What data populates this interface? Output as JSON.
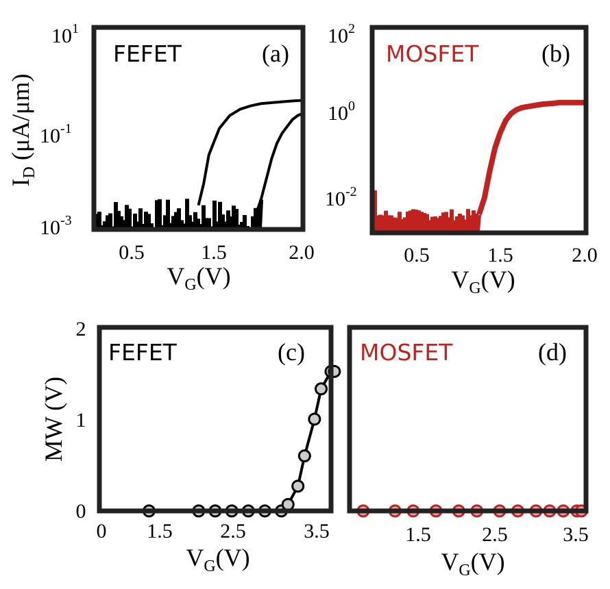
{
  "colors": {
    "fefet": "#000000",
    "mosfet": "#c0221f",
    "marker_fill": "#cccccc",
    "mosfet_marker_fill": "#e3a6a6"
  },
  "chart_data": [
    {
      "id": "a",
      "type": "line",
      "panel_label": "(a)",
      "inset_label": "FEFET",
      "xlabel": "V",
      "xlabel_sub": "G",
      "xlabel_tail": "(V)",
      "ylabel": "I",
      "ylabel_sub": "D",
      "ylabel_tail": " (μA/μm)",
      "x_tick_labels": [
        "0.5",
        "1.5",
        "2.0"
      ],
      "y_tick_labels": [
        {
          "base": "10",
          "exp": "-3"
        },
        {
          "base": "10",
          "exp": "-1"
        },
        {
          "base": "10",
          "exp": "1"
        }
      ],
      "yscale": "log",
      "xlim": [
        0,
        2.0
      ],
      "ylim": [
        0.001,
        10
      ],
      "noise_floor_range": [
        0.001,
        0.004
      ],
      "series": [
        {
          "x": [
            1.0,
            1.05,
            1.1,
            1.2,
            1.3,
            1.4,
            1.5,
            1.6,
            1.75,
            1.9,
            2.0
          ],
          "y": [
            0.003,
            0.008,
            0.03,
            0.1,
            0.18,
            0.24,
            0.28,
            0.31,
            0.33,
            0.35,
            0.36
          ]
        },
        {
          "x": [
            1.55,
            1.6,
            1.65,
            1.7,
            1.75,
            1.8,
            1.85,
            1.9,
            1.95,
            2.0
          ],
          "y": [
            0.002,
            0.004,
            0.01,
            0.025,
            0.05,
            0.08,
            0.11,
            0.15,
            0.18,
            0.2
          ]
        }
      ]
    },
    {
      "id": "b",
      "type": "line",
      "panel_label": "(b)",
      "inset_label": "MOSFET",
      "xlabel": "V",
      "xlabel_sub": "G",
      "xlabel_tail": "(V)",
      "x_tick_labels": [
        "0.5",
        "1.5",
        "2.0"
      ],
      "y_tick_labels": [
        {
          "base": "10",
          "exp": "-2"
        },
        {
          "base": "10",
          "exp": "0"
        },
        {
          "base": "10",
          "exp": "2"
        }
      ],
      "yscale": "log",
      "xlim": [
        0,
        2.0
      ],
      "ylim": [
        0.0005,
        100
      ],
      "noise_floor_range": [
        0.001,
        0.002
      ],
      "series": [
        {
          "x": [
            1.0,
            1.05,
            1.1,
            1.15,
            1.2,
            1.25,
            1.3,
            1.35,
            1.4,
            1.5,
            1.6,
            1.7,
            1.75,
            2.0
          ],
          "y": [
            0.0015,
            0.004,
            0.02,
            0.08,
            0.2,
            0.4,
            0.6,
            0.75,
            0.85,
            0.95,
            1.05,
            1.1,
            1.15,
            1.15
          ]
        }
      ]
    },
    {
      "id": "c",
      "type": "line",
      "panel_label": "(c)",
      "inset_label": "FEFET",
      "xlabel": "V",
      "xlabel_sub": "G",
      "xlabel_tail": "(V)",
      "ylabel": "MW (V)",
      "x_tick_labels": [
        "0",
        "1.5",
        "2.5",
        "3.5"
      ],
      "y_tick_labels": [
        "0",
        "1",
        "2"
      ],
      "xlim": [
        0,
        3.5
      ],
      "ylim": [
        0,
        2
      ],
      "series": [
        {
          "x": [
            0.75,
            1.5,
            1.75,
            2.0,
            2.25,
            2.5,
            2.75,
            2.85,
            3.0,
            3.1,
            3.25,
            3.35,
            3.5,
            3.55
          ],
          "y": [
            0,
            0,
            0,
            0,
            0,
            0,
            0,
            0.07,
            0.27,
            0.6,
            1.0,
            1.33,
            1.52,
            1.52
          ]
        }
      ]
    },
    {
      "id": "d",
      "type": "line",
      "panel_label": "(d)",
      "inset_label": "MOSFET",
      "xlabel": "V",
      "xlabel_sub": "G",
      "xlabel_tail": "(V)",
      "x_tick_labels": [
        "1.5",
        "2.5",
        "3.5"
      ],
      "xlim": [
        1.0,
        3.6
      ],
      "ylim": [
        0,
        2
      ],
      "series": [
        {
          "x": [
            1.15,
            1.5,
            1.7,
            1.95,
            2.2,
            2.4,
            2.65,
            2.85,
            3.05,
            3.2,
            3.35,
            3.5,
            3.55
          ],
          "y": [
            0,
            0,
            0,
            0,
            0,
            0,
            0,
            0,
            0,
            0,
            0,
            0,
            0
          ]
        }
      ]
    }
  ]
}
